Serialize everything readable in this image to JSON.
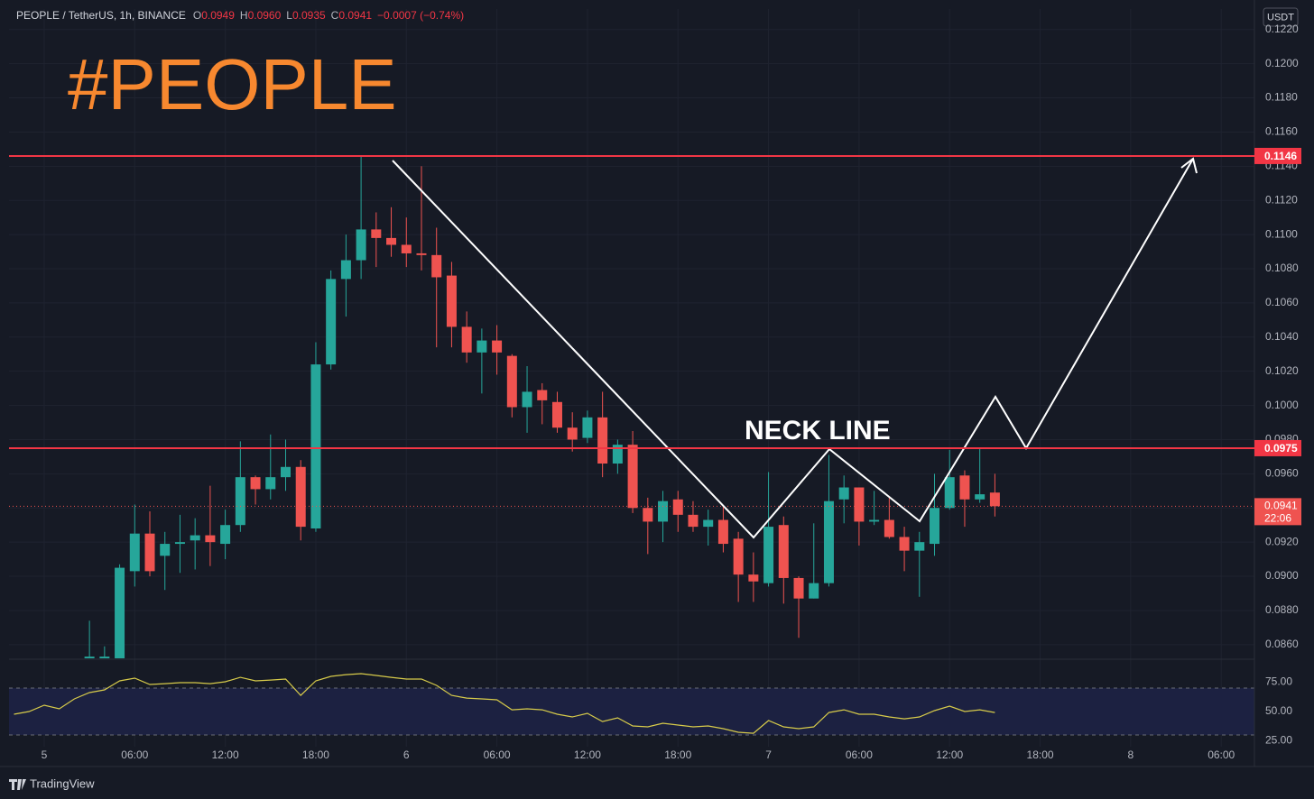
{
  "chart_data": [
    {
      "type": "candlestick",
      "title": "PEOPLE / TetherUS, 1h, BINANCE",
      "ohlc_legend": [
        {
          "label": "O",
          "value": "0.0949"
        },
        {
          "label": "H",
          "value": "0.0960"
        },
        {
          "label": "L",
          "value": "0.0935"
        },
        {
          "label": "C",
          "value": "0.0941"
        }
      ],
      "change": "−0.0007 (−0.74%)",
      "currency": "USDT",
      "annotations": [
        "#PEOPLE",
        "NECK LINE"
      ],
      "colors": {
        "up": "#26a69a",
        "down": "#ef5350",
        "level": "#f23645"
      },
      "x": [
        3,
        4,
        5,
        6,
        7,
        8,
        9,
        10,
        11,
        12,
        13,
        14,
        15,
        16,
        17,
        18,
        19,
        20,
        21,
        22,
        23,
        24,
        25,
        26,
        27,
        28,
        29,
        30,
        31,
        32,
        33,
        34,
        35,
        36,
        37,
        38,
        39,
        40,
        41,
        42,
        43,
        44,
        45,
        46,
        47,
        48,
        49,
        50,
        51,
        52,
        53,
        54,
        55,
        56,
        57,
        58,
        59,
        60,
        61,
        62,
        63
      ],
      "open": [
        0.0852,
        0.0852,
        0.0852,
        0.0903,
        0.0925,
        0.0912,
        0.0919,
        0.0921,
        0.0924,
        0.0919,
        0.093,
        0.0958,
        0.0951,
        0.0958,
        0.0964,
        0.0928,
        0.1024,
        0.1074,
        0.1085,
        0.1103,
        0.1098,
        0.1094,
        0.1089,
        0.1088,
        0.1076,
        0.1046,
        0.1031,
        0.1038,
        0.1029,
        0.0999,
        0.1009,
        0.1002,
        0.0987,
        0.0981,
        0.0993,
        0.0966,
        0.0977,
        0.094,
        0.0932,
        0.0945,
        0.0936,
        0.0929,
        0.0933,
        0.0922,
        0.0901,
        0.0896,
        0.093,
        0.0899,
        0.0887,
        0.0896,
        0.0945,
        0.0952,
        0.0932,
        0.0933,
        0.0923,
        0.0915,
        0.0919,
        0.094,
        0.0959,
        0.0945,
        0.0949
      ],
      "high": [
        0.0874,
        0.0859,
        0.0907,
        0.0942,
        0.0938,
        0.0926,
        0.0936,
        0.0934,
        0.0953,
        0.0939,
        0.0979,
        0.0959,
        0.0983,
        0.098,
        0.0968,
        0.1037,
        0.1079,
        0.11,
        0.1146,
        0.1113,
        0.1116,
        0.111,
        0.114,
        0.1104,
        0.1084,
        0.1055,
        0.1045,
        0.1047,
        0.103,
        0.1023,
        0.1013,
        0.1008,
        0.0996,
        0.0997,
        0.1008,
        0.098,
        0.0985,
        0.0946,
        0.095,
        0.095,
        0.0944,
        0.0939,
        0.0941,
        0.0926,
        0.0914,
        0.0961,
        0.0935,
        0.09,
        0.0931,
        0.0971,
        0.0959,
        0.0952,
        0.095,
        0.0946,
        0.0929,
        0.0926,
        0.096,
        0.0974,
        0.0962,
        0.0975,
        0.096
      ],
      "low": [
        0.085,
        0.0851,
        0.0851,
        0.0894,
        0.09,
        0.0892,
        0.0902,
        0.0904,
        0.0906,
        0.091,
        0.0926,
        0.0942,
        0.0945,
        0.095,
        0.0921,
        0.0926,
        0.1021,
        0.1052,
        0.1074,
        0.1081,
        0.1087,
        0.1081,
        0.1079,
        0.1034,
        0.1034,
        0.1025,
        0.1007,
        0.1018,
        0.0993,
        0.0984,
        0.0989,
        0.0984,
        0.0973,
        0.0978,
        0.0958,
        0.096,
        0.0937,
        0.0913,
        0.092,
        0.0926,
        0.0926,
        0.0918,
        0.0914,
        0.0885,
        0.0885,
        0.0894,
        0.0884,
        0.0864,
        0.0887,
        0.0894,
        0.0931,
        0.0918,
        0.093,
        0.0922,
        0.0903,
        0.0888,
        0.0912,
        0.0939,
        0.0929,
        0.0943,
        0.0935
      ],
      "close": [
        0.0853,
        0.0853,
        0.0905,
        0.0925,
        0.0903,
        0.0919,
        0.092,
        0.0924,
        0.092,
        0.093,
        0.0958,
        0.0951,
        0.0958,
        0.0964,
        0.0929,
        0.1024,
        0.1074,
        0.1085,
        0.1103,
        0.1098,
        0.1094,
        0.1089,
        0.1088,
        0.1075,
        0.1046,
        0.1031,
        0.1038,
        0.1031,
        0.0999,
        0.1008,
        0.1003,
        0.0987,
        0.098,
        0.0993,
        0.0966,
        0.0977,
        0.094,
        0.0932,
        0.0944,
        0.0936,
        0.0929,
        0.0933,
        0.0919,
        0.0901,
        0.0897,
        0.0929,
        0.0899,
        0.0887,
        0.0896,
        0.0944,
        0.0952,
        0.0932,
        0.0933,
        0.0923,
        0.0915,
        0.092,
        0.094,
        0.0958,
        0.0945,
        0.0948,
        0.0941
      ],
      "xlim": [
        -2.33,
        80.2
      ],
      "xticks": [
        {
          "value": 0,
          "label": "5"
        },
        {
          "value": 6,
          "label": "06:00"
        },
        {
          "value": 12,
          "label": "12:00"
        },
        {
          "value": 18,
          "label": "18:00"
        },
        {
          "value": 24,
          "label": "6"
        },
        {
          "value": 30,
          "label": "06:00"
        },
        {
          "value": 36,
          "label": "12:00"
        },
        {
          "value": 42,
          "label": "18:00"
        },
        {
          "value": 48,
          "label": "7"
        },
        {
          "value": 54,
          "label": "06:00"
        },
        {
          "value": 60,
          "label": "12:00"
        },
        {
          "value": 66,
          "label": "18:00"
        },
        {
          "value": 72,
          "label": "8"
        },
        {
          "value": 78,
          "label": "06:00"
        }
      ],
      "ylim": [
        0.0852,
        0.1232
      ],
      "yticks": [
        {
          "value": 0.086,
          "label": "0.0860"
        },
        {
          "value": 0.088,
          "label": "0.0880"
        },
        {
          "value": 0.09,
          "label": "0.0900"
        },
        {
          "value": 0.092,
          "label": "0.0920"
        },
        {
          "value": 0.094,
          "label": "0.0940"
        },
        {
          "value": 0.096,
          "label": "0.0960"
        },
        {
          "value": 0.098,
          "label": "0.0980"
        },
        {
          "value": 0.1,
          "label": "0.1000"
        },
        {
          "value": 0.102,
          "label": "0.1020"
        },
        {
          "value": 0.104,
          "label": "0.1040"
        },
        {
          "value": 0.106,
          "label": "0.1060"
        },
        {
          "value": 0.108,
          "label": "0.1080"
        },
        {
          "value": 0.11,
          "label": "0.1100"
        },
        {
          "value": 0.112,
          "label": "0.1120"
        },
        {
          "value": 0.114,
          "label": "0.1140"
        },
        {
          "value": 0.116,
          "label": "0.1160"
        },
        {
          "value": 0.118,
          "label": "0.1180"
        },
        {
          "value": 0.12,
          "label": "0.1200"
        },
        {
          "value": 0.122,
          "label": "0.1220"
        }
      ],
      "hlines": [
        0.1146,
        0.0975
      ],
      "last_price": 0.0941,
      "countdown": "22:06",
      "grid": true
    },
    {
      "type": "line",
      "color": "#d7cb4a",
      "x": [
        -2,
        -1,
        0,
        1,
        2,
        3,
        4,
        5,
        6,
        7,
        8,
        9,
        10,
        11,
        12,
        13,
        14,
        15,
        16,
        17,
        18,
        19,
        20,
        21,
        22,
        23,
        24,
        25,
        26,
        27,
        28,
        29,
        30,
        31,
        32,
        33,
        34,
        35,
        36,
        37,
        38,
        39,
        40,
        41,
        42,
        43,
        44,
        45,
        46,
        47,
        48,
        49,
        50,
        51,
        52,
        53,
        54,
        55,
        56,
        57,
        58,
        59,
        60,
        61,
        62,
        63
      ],
      "values": [
        47.7,
        50,
        55.4,
        52.3,
        60.8,
        66.2,
        68.5,
        76.2,
        78.5,
        73.1,
        73.8,
        74.6,
        74.6,
        73.8,
        75.4,
        79.2,
        76.2,
        76.9,
        77.7,
        63.8,
        76.2,
        80,
        81.5,
        82.3,
        80.8,
        79.2,
        77.7,
        77.7,
        72.3,
        63.8,
        61.5,
        60.8,
        60,
        51.5,
        52.3,
        51.5,
        47.7,
        45.4,
        48.5,
        41.5,
        44.6,
        37.7,
        36.9,
        40,
        38.5,
        36.9,
        37.7,
        35.4,
        32.3,
        31.5,
        42.3,
        36.9,
        35.4,
        36.9,
        49.2,
        51.5,
        47.7,
        47.7,
        45.4,
        43.8,
        45.4,
        50.8,
        54.6,
        50,
        51.5,
        49.2
      ],
      "ylim": [
        20,
        93.1
      ],
      "yticks": [
        {
          "value": 25,
          "label": "25.00"
        },
        {
          "value": 50,
          "label": "50.00"
        },
        {
          "value": 75,
          "label": "75.00"
        }
      ],
      "bands": [
        70,
        30
      ]
    }
  ],
  "branding": "TradingView"
}
